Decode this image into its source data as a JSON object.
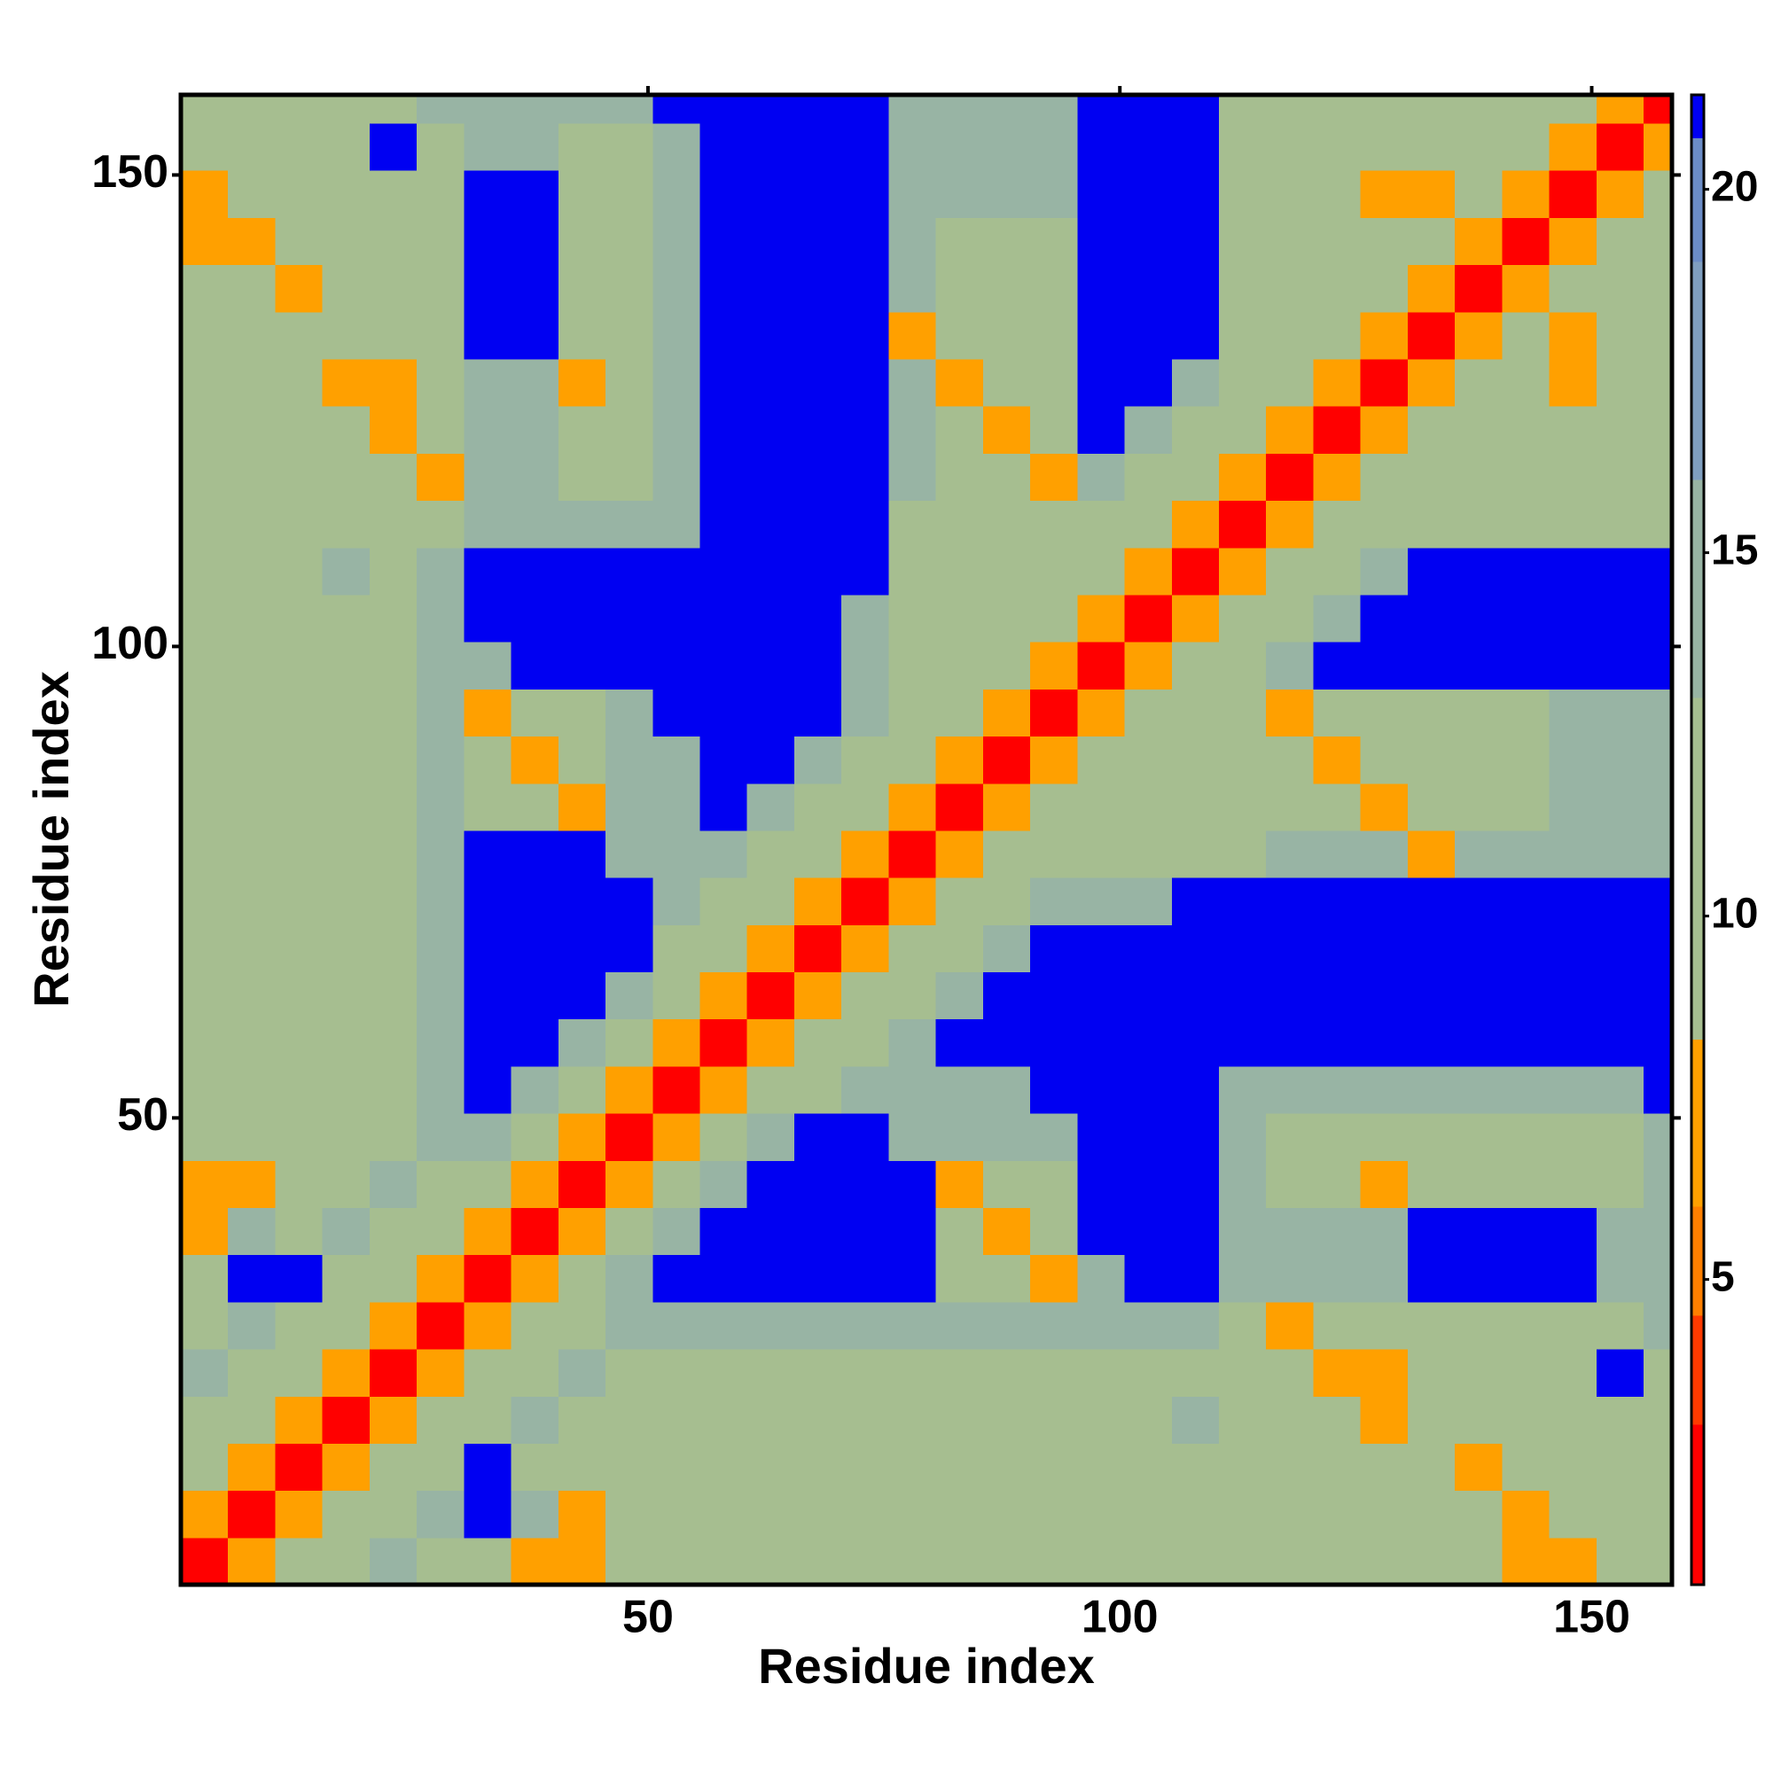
{
  "chart_data": {
    "type": "heatmap",
    "x_label": "Residue index",
    "y_label": "Residue index",
    "x": [
      3,
      8,
      13,
      18,
      23,
      28,
      33,
      38,
      43,
      48,
      53,
      58,
      63,
      68,
      73,
      78,
      83,
      88,
      93,
      98,
      103,
      108,
      113,
      118,
      123,
      128,
      133,
      138,
      143,
      148,
      153,
      158
    ],
    "y": [
      3,
      8,
      13,
      18,
      23,
      28,
      33,
      38,
      43,
      48,
      53,
      58,
      63,
      68,
      73,
      78,
      83,
      88,
      93,
      98,
      103,
      108,
      113,
      118,
      123,
      128,
      133,
      138,
      143,
      148,
      153,
      158
    ],
    "z": [
      [
        2,
        7,
        11,
        11,
        14,
        11,
        11,
        7,
        7,
        11,
        11,
        11,
        11,
        11,
        11,
        11,
        11,
        11,
        11,
        11,
        11,
        11,
        11,
        11,
        11,
        11,
        11,
        11,
        7,
        7,
        11,
        11
      ],
      [
        7,
        2,
        7,
        11,
        11,
        14,
        21,
        14,
        7,
        11,
        11,
        11,
        11,
        11,
        11,
        11,
        11,
        11,
        11,
        11,
        11,
        11,
        11,
        11,
        11,
        11,
        11,
        11,
        7,
        11,
        11,
        11
      ],
      [
        11,
        7,
        2,
        7,
        11,
        11,
        21,
        11,
        11,
        11,
        11,
        11,
        11,
        11,
        11,
        11,
        11,
        11,
        11,
        11,
        11,
        11,
        11,
        11,
        11,
        11,
        11,
        7,
        11,
        11,
        11,
        11
      ],
      [
        11,
        11,
        7,
        2,
        7,
        11,
        11,
        14,
        11,
        11,
        11,
        11,
        11,
        11,
        11,
        11,
        11,
        11,
        11,
        11,
        11,
        14,
        11,
        11,
        11,
        7,
        11,
        11,
        11,
        11,
        11,
        11
      ],
      [
        14,
        11,
        11,
        7,
        2,
        7,
        11,
        11,
        14,
        11,
        11,
        11,
        11,
        11,
        11,
        11,
        11,
        11,
        11,
        11,
        11,
        11,
        11,
        11,
        7,
        7,
        11,
        11,
        11,
        11,
        21,
        11
      ],
      [
        11,
        14,
        11,
        11,
        7,
        2,
        7,
        11,
        11,
        14,
        14,
        14,
        14,
        14,
        14,
        14,
        14,
        14,
        14,
        14,
        14,
        14,
        11,
        7,
        11,
        11,
        11,
        11,
        11,
        11,
        11,
        14
      ],
      [
        11,
        21,
        21,
        11,
        11,
        7,
        2,
        7,
        11,
        14,
        21,
        21,
        21,
        21,
        21,
        21,
        11,
        11,
        7,
        14,
        21,
        21,
        14,
        14,
        14,
        14,
        21,
        21,
        21,
        21,
        14,
        14
      ],
      [
        7,
        14,
        11,
        14,
        11,
        11,
        7,
        2,
        7,
        11,
        14,
        21,
        21,
        21,
        21,
        21,
        11,
        7,
        11,
        21,
        21,
        21,
        14,
        14,
        14,
        14,
        21,
        21,
        21,
        21,
        14,
        14
      ],
      [
        7,
        7,
        11,
        11,
        14,
        11,
        11,
        7,
        2,
        7,
        11,
        14,
        21,
        21,
        21,
        21,
        7,
        11,
        11,
        21,
        21,
        21,
        14,
        11,
        11,
        7,
        11,
        11,
        11,
        11,
        11,
        14
      ],
      [
        11,
        11,
        11,
        11,
        11,
        14,
        14,
        11,
        7,
        2,
        7,
        11,
        14,
        21,
        21,
        14,
        14,
        14,
        14,
        21,
        21,
        21,
        14,
        11,
        11,
        11,
        11,
        11,
        11,
        11,
        11,
        14
      ],
      [
        11,
        11,
        11,
        11,
        11,
        14,
        21,
        14,
        11,
        7,
        2,
        7,
        11,
        11,
        14,
        14,
        14,
        14,
        21,
        21,
        21,
        21,
        14,
        14,
        14,
        14,
        14,
        14,
        14,
        14,
        14,
        21
      ],
      [
        11,
        11,
        11,
        11,
        11,
        14,
        21,
        21,
        14,
        11,
        7,
        2,
        7,
        11,
        11,
        14,
        21,
        21,
        21,
        21,
        21,
        21,
        21,
        21,
        21,
        21,
        21,
        21,
        21,
        21,
        21,
        21
      ],
      [
        11,
        11,
        11,
        11,
        11,
        14,
        21,
        21,
        21,
        14,
        11,
        7,
        2,
        7,
        11,
        11,
        14,
        21,
        21,
        21,
        21,
        21,
        21,
        21,
        21,
        21,
        21,
        21,
        21,
        21,
        21,
        21
      ],
      [
        11,
        11,
        11,
        11,
        11,
        14,
        21,
        21,
        21,
        21,
        11,
        11,
        7,
        2,
        7,
        11,
        11,
        14,
        21,
        21,
        21,
        21,
        21,
        21,
        21,
        21,
        21,
        21,
        21,
        21,
        21,
        21
      ],
      [
        11,
        11,
        11,
        11,
        11,
        14,
        21,
        21,
        21,
        21,
        14,
        11,
        11,
        7,
        2,
        7,
        11,
        11,
        14,
        14,
        14,
        21,
        21,
        21,
        21,
        21,
        21,
        21,
        21,
        21,
        21,
        21
      ],
      [
        11,
        11,
        11,
        11,
        11,
        14,
        21,
        21,
        21,
        14,
        14,
        14,
        11,
        11,
        7,
        2,
        7,
        11,
        11,
        11,
        11,
        11,
        11,
        14,
        14,
        14,
        7,
        14,
        14,
        14,
        14,
        14
      ],
      [
        11,
        11,
        11,
        11,
        11,
        14,
        11,
        11,
        7,
        14,
        14,
        21,
        14,
        11,
        11,
        7,
        2,
        7,
        11,
        11,
        11,
        11,
        11,
        11,
        11,
        7,
        11,
        11,
        11,
        14,
        14,
        14
      ],
      [
        11,
        11,
        11,
        11,
        11,
        14,
        11,
        7,
        11,
        14,
        14,
        21,
        21,
        14,
        11,
        11,
        7,
        2,
        7,
        11,
        11,
        11,
        11,
        11,
        7,
        11,
        11,
        11,
        11,
        14,
        14,
        14
      ],
      [
        11,
        11,
        11,
        11,
        11,
        14,
        7,
        11,
        11,
        14,
        21,
        21,
        21,
        21,
        14,
        11,
        11,
        7,
        2,
        7,
        11,
        11,
        11,
        7,
        11,
        11,
        11,
        11,
        11,
        14,
        14,
        14
      ],
      [
        11,
        11,
        11,
        11,
        11,
        14,
        14,
        21,
        21,
        21,
        21,
        21,
        21,
        21,
        14,
        11,
        11,
        11,
        7,
        2,
        7,
        11,
        11,
        14,
        21,
        21,
        21,
        21,
        21,
        21,
        21,
        21
      ],
      [
        11,
        11,
        11,
        11,
        11,
        14,
        21,
        21,
        21,
        21,
        21,
        21,
        21,
        21,
        14,
        11,
        11,
        11,
        11,
        7,
        2,
        7,
        11,
        11,
        14,
        21,
        21,
        21,
        21,
        21,
        21,
        21
      ],
      [
        11,
        11,
        11,
        14,
        11,
        14,
        21,
        21,
        21,
        21,
        21,
        21,
        21,
        21,
        21,
        11,
        11,
        11,
        11,
        11,
        7,
        2,
        7,
        11,
        11,
        14,
        21,
        21,
        21,
        21,
        21,
        21
      ],
      [
        11,
        11,
        11,
        11,
        11,
        11,
        14,
        14,
        14,
        14,
        14,
        21,
        21,
        21,
        21,
        11,
        11,
        11,
        11,
        11,
        11,
        7,
        2,
        7,
        11,
        11,
        11,
        11,
        11,
        11,
        11,
        11
      ],
      [
        11,
        11,
        11,
        11,
        11,
        7,
        14,
        14,
        11,
        11,
        14,
        21,
        21,
        21,
        21,
        14,
        11,
        11,
        7,
        14,
        11,
        11,
        7,
        2,
        7,
        11,
        11,
        11,
        11,
        11,
        11,
        11
      ],
      [
        11,
        11,
        11,
        11,
        7,
        11,
        14,
        14,
        11,
        11,
        14,
        21,
        21,
        21,
        21,
        14,
        11,
        7,
        11,
        21,
        14,
        11,
        11,
        7,
        2,
        7,
        11,
        11,
        11,
        11,
        11,
        11
      ],
      [
        11,
        11,
        11,
        7,
        7,
        11,
        14,
        14,
        7,
        11,
        14,
        21,
        21,
        21,
        21,
        14,
        7,
        11,
        11,
        21,
        21,
        14,
        11,
        11,
        7,
        2,
        7,
        11,
        11,
        7,
        11,
        11
      ],
      [
        11,
        11,
        11,
        11,
        11,
        11,
        21,
        21,
        11,
        11,
        14,
        21,
        21,
        21,
        21,
        7,
        11,
        11,
        11,
        21,
        21,
        21,
        11,
        11,
        11,
        7,
        2,
        7,
        11,
        7,
        11,
        11
      ],
      [
        11,
        11,
        7,
        11,
        11,
        11,
        21,
        21,
        11,
        11,
        14,
        21,
        21,
        21,
        21,
        14,
        11,
        11,
        11,
        21,
        21,
        21,
        11,
        11,
        11,
        11,
        7,
        2,
        7,
        11,
        11,
        11
      ],
      [
        7,
        7,
        11,
        11,
        11,
        11,
        21,
        21,
        11,
        11,
        14,
        21,
        21,
        21,
        21,
        14,
        11,
        11,
        11,
        21,
        21,
        21,
        11,
        11,
        11,
        11,
        11,
        7,
        2,
        7,
        11,
        11
      ],
      [
        7,
        11,
        11,
        11,
        11,
        11,
        21,
        21,
        11,
        11,
        14,
        21,
        21,
        21,
        21,
        14,
        14,
        14,
        14,
        21,
        21,
        21,
        11,
        11,
        11,
        7,
        7,
        11,
        7,
        2,
        7,
        11
      ],
      [
        11,
        11,
        11,
        11,
        21,
        11,
        14,
        14,
        11,
        11,
        14,
        21,
        21,
        21,
        21,
        14,
        14,
        14,
        14,
        21,
        21,
        21,
        11,
        11,
        11,
        11,
        11,
        11,
        11,
        7,
        2,
        7
      ],
      [
        11,
        11,
        11,
        11,
        11,
        14,
        14,
        14,
        14,
        14,
        21,
        21,
        21,
        21,
        21,
        14,
        14,
        14,
        14,
        21,
        21,
        21,
        11,
        11,
        11,
        11,
        11,
        11,
        11,
        11,
        7,
        2
      ]
    ],
    "xlim": [
      0.5,
      158.5
    ],
    "ylim": [
      0.5,
      158.5
    ],
    "xticks": [
      50,
      100,
      150
    ],
    "yticks": [
      50,
      100,
      150
    ],
    "colorbar": {
      "lim": [
        0.8,
        21.3
      ],
      "ticks": [
        5,
        10,
        15,
        20
      ]
    },
    "colorscale": [
      {
        "value": 0.8,
        "color": "#ff0000"
      },
      {
        "value": 3,
        "color": "#ff3a00"
      },
      {
        "value": 4.5,
        "color": "#ff7f00"
      },
      {
        "value": 6,
        "color": "#ffa000"
      },
      {
        "value": 8.3,
        "color": "#a6be90"
      },
      {
        "value": 13,
        "color": "#98b4a4"
      },
      {
        "value": 16,
        "color": "#7f9ebf"
      },
      {
        "value": 19,
        "color": "#6b8cc6"
      },
      {
        "value": 20.7,
        "color": "#0000f2"
      }
    ]
  }
}
